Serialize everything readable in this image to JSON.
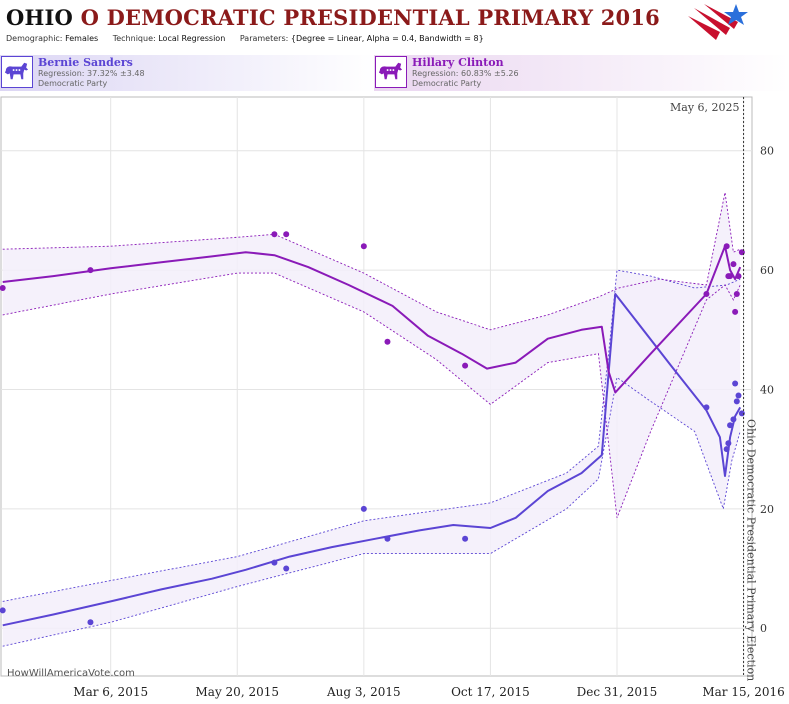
{
  "header": {
    "state": "OHIO",
    "title_rest": "O DEMOCRATIC PRESIDENTIAL PRIMARY 2016",
    "demographic_label": "Demographic:",
    "demographic_value": "Females",
    "technique_label": "Technique:",
    "technique_value": "Local Regression",
    "parameters_label": "Parameters:",
    "parameters_value": "{Degree = Linear, Alpha = 0.4, Bandwidth = 8}"
  },
  "candidates": [
    {
      "name": "Bernie Sanders",
      "regression": "Regression: 37.32% ±3.48",
      "party": "Democratic Party",
      "color": "#5b45d4",
      "icon": "donkey-icon"
    },
    {
      "name": "Hillary Clinton",
      "regression": "Regression: 60.83% ±5.26",
      "party": "Democratic Party",
      "color": "#8a1ab8",
      "icon": "donkey-icon"
    }
  ],
  "footer": {
    "site": "HowWillAmericaVote.com"
  },
  "colors": {
    "title": "#8b1a1a",
    "sanders": "#5b45d4",
    "clinton": "#8a1ab8",
    "band": "#f3effa"
  },
  "chart_data": {
    "type": "line",
    "title": "OHIO O DEMOCRATIC PRESIDENTIAL PRIMARY 2016",
    "xlabel": "",
    "ylabel": "",
    "x_axis_type": "date",
    "xlim": [
      "2014-12-31",
      "2016-03-20"
    ],
    "ylim": [
      -8,
      89
    ],
    "y_ticks": [
      0,
      20,
      40,
      60,
      80
    ],
    "x_ticks": [
      {
        "date": "2015-03-06",
        "label": "Mar 6, 2015"
      },
      {
        "date": "2015-05-20",
        "label": "May 20, 2015"
      },
      {
        "date": "2015-08-03",
        "label": "Aug 3, 2015"
      },
      {
        "date": "2015-10-17",
        "label": "Oct 17, 2015"
      },
      {
        "date": "2015-12-31",
        "label": "Dec 31, 2015"
      },
      {
        "date": "2016-03-15",
        "label": "Mar 15, 2016"
      }
    ],
    "grid": true,
    "event_line": {
      "date": "2016-03-15",
      "label": "Ohio Democratic Presidential Primary Election",
      "top_label": "May 6, 2025"
    },
    "series": [
      {
        "name": "Bernie Sanders",
        "color": "#5b45d4",
        "points": [
          [
            "2015-01-01",
            3
          ],
          [
            "2015-02-22",
            1
          ],
          [
            "2015-06-11",
            11
          ],
          [
            "2015-06-18",
            10
          ],
          [
            "2015-08-03",
            20
          ],
          [
            "2015-08-17",
            15
          ],
          [
            "2015-10-02",
            15
          ],
          [
            "2016-02-22",
            37
          ],
          [
            "2016-03-05",
            30
          ],
          [
            "2016-03-06",
            31
          ],
          [
            "2016-03-07",
            34
          ],
          [
            "2016-03-09",
            35
          ],
          [
            "2016-03-10",
            41
          ],
          [
            "2016-03-11",
            38
          ],
          [
            "2016-03-12",
            39
          ],
          [
            "2016-03-14",
            36
          ]
        ],
        "fit": [
          [
            "2015-01-01",
            0.5
          ],
          [
            "2015-01-31",
            2.3
          ],
          [
            "2015-03-06",
            4.5
          ],
          [
            "2015-04-05",
            6.5
          ],
          [
            "2015-05-05",
            8.3
          ],
          [
            "2015-05-25",
            9.8
          ],
          [
            "2015-06-20",
            12.0
          ],
          [
            "2015-07-15",
            13.6
          ],
          [
            "2015-08-10",
            15.0
          ],
          [
            "2015-09-05",
            16.4
          ],
          [
            "2015-09-25",
            17.3
          ],
          [
            "2015-10-17",
            16.8
          ],
          [
            "2015-11-01",
            18.5
          ],
          [
            "2015-11-20",
            23.0
          ],
          [
            "2015-12-10",
            26.0
          ],
          [
            "2015-12-22",
            29.0
          ],
          [
            "2015-12-27",
            46.0
          ],
          [
            "2015-12-30",
            56.0
          ],
          [
            "2016-01-10",
            52.0
          ],
          [
            "2016-02-01",
            44.0
          ],
          [
            "2016-02-22",
            36.5
          ],
          [
            "2016-03-01",
            32.0
          ],
          [
            "2016-03-04",
            25.5
          ],
          [
            "2016-03-07",
            32.0
          ],
          [
            "2016-03-10",
            35.5
          ],
          [
            "2016-03-13",
            37.0
          ]
        ],
        "band_upper": [
          [
            "2015-01-01",
            4.5
          ],
          [
            "2015-03-06",
            8.0
          ],
          [
            "2015-05-20",
            12.0
          ],
          [
            "2015-08-03",
            18.0
          ],
          [
            "2015-10-17",
            21.0
          ],
          [
            "2015-12-01",
            26.0
          ],
          [
            "2015-12-20",
            30.5
          ],
          [
            "2015-12-26",
            46.0
          ],
          [
            "2015-12-31",
            60.0
          ],
          [
            "2016-01-20",
            59.0
          ],
          [
            "2016-02-15",
            57.0
          ],
          [
            "2016-03-05",
            57.5
          ],
          [
            "2016-03-13",
            58.5
          ]
        ],
        "band_lower": [
          [
            "2015-01-01",
            -3.0
          ],
          [
            "2015-03-06",
            1.0
          ],
          [
            "2015-05-20",
            7.0
          ],
          [
            "2015-08-03",
            12.5
          ],
          [
            "2015-10-17",
            12.5
          ],
          [
            "2015-12-01",
            20.0
          ],
          [
            "2015-12-20",
            25.0
          ],
          [
            "2015-12-31",
            42.0
          ],
          [
            "2016-01-20",
            38.0
          ],
          [
            "2016-02-15",
            33.0
          ],
          [
            "2016-03-03",
            20.0
          ],
          [
            "2016-03-08",
            28.0
          ],
          [
            "2016-03-13",
            33.0
          ]
        ]
      },
      {
        "name": "Hillary Clinton",
        "color": "#8a1ab8",
        "points": [
          [
            "2015-01-01",
            57
          ],
          [
            "2015-02-22",
            60
          ],
          [
            "2015-06-11",
            66
          ],
          [
            "2015-06-18",
            66
          ],
          [
            "2015-08-03",
            64
          ],
          [
            "2015-08-17",
            48
          ],
          [
            "2015-10-02",
            44
          ],
          [
            "2016-02-22",
            56
          ],
          [
            "2016-03-05",
            64
          ],
          [
            "2016-03-06",
            59
          ],
          [
            "2016-03-07",
            59
          ],
          [
            "2016-03-09",
            61
          ],
          [
            "2016-03-10",
            53
          ],
          [
            "2016-03-11",
            56
          ],
          [
            "2016-03-12",
            59
          ],
          [
            "2016-03-14",
            63
          ]
        ],
        "fit": [
          [
            "2015-01-01",
            58.0
          ],
          [
            "2015-01-31",
            59.0
          ],
          [
            "2015-03-06",
            60.3
          ],
          [
            "2015-04-05",
            61.3
          ],
          [
            "2015-05-05",
            62.3
          ],
          [
            "2015-05-25",
            63.0
          ],
          [
            "2015-06-11",
            62.5
          ],
          [
            "2015-07-01",
            60.5
          ],
          [
            "2015-07-25",
            57.5
          ],
          [
            "2015-08-20",
            54.0
          ],
          [
            "2015-09-10",
            49.0
          ],
          [
            "2015-09-30",
            46.0
          ],
          [
            "2015-10-15",
            43.5
          ],
          [
            "2015-11-01",
            44.5
          ],
          [
            "2015-11-20",
            48.5
          ],
          [
            "2015-12-10",
            50.0
          ],
          [
            "2015-12-22",
            50.5
          ],
          [
            "2015-12-26",
            43.0
          ],
          [
            "2015-12-30",
            39.5
          ],
          [
            "2016-01-20",
            46.0
          ],
          [
            "2016-02-22",
            56.0
          ],
          [
            "2016-03-04",
            64.0
          ],
          [
            "2016-03-07",
            60.0
          ],
          [
            "2016-03-10",
            58.5
          ],
          [
            "2016-03-13",
            60.5
          ]
        ],
        "band_upper": [
          [
            "2015-01-01",
            63.5
          ],
          [
            "2015-03-06",
            64.0
          ],
          [
            "2015-05-20",
            65.5
          ],
          [
            "2015-06-11",
            66.0
          ],
          [
            "2015-08-03",
            59.5
          ],
          [
            "2015-09-15",
            53.0
          ],
          [
            "2015-10-17",
            50.0
          ],
          [
            "2015-11-20",
            52.5
          ],
          [
            "2015-12-20",
            55.5
          ],
          [
            "2016-01-01",
            57.0
          ],
          [
            "2016-01-25",
            58.5
          ],
          [
            "2016-02-22",
            57.5
          ],
          [
            "2016-03-04",
            73.0
          ],
          [
            "2016-03-09",
            63.0
          ],
          [
            "2016-03-13",
            63.5
          ]
        ],
        "band_lower": [
          [
            "2015-01-01",
            52.5
          ],
          [
            "2015-03-06",
            56.0
          ],
          [
            "2015-05-20",
            59.5
          ],
          [
            "2015-06-11",
            59.5
          ],
          [
            "2015-08-03",
            53.0
          ],
          [
            "2015-09-15",
            45.0
          ],
          [
            "2015-10-17",
            37.5
          ],
          [
            "2015-11-20",
            44.5
          ],
          [
            "2015-12-20",
            46.0
          ],
          [
            "2015-12-31",
            18.5
          ],
          [
            "2016-01-20",
            33.0
          ],
          [
            "2016-02-22",
            55.0
          ],
          [
            "2016-03-04",
            57.5
          ],
          [
            "2016-03-09",
            55.0
          ],
          [
            "2016-03-13",
            57.5
          ]
        ]
      }
    ]
  }
}
